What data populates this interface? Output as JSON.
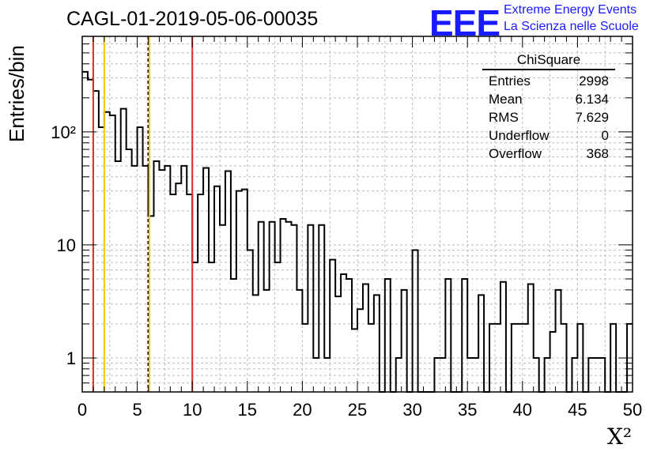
{
  "title": "CAGL-01-2019-05-06-00035",
  "logo": {
    "mark": "EEE",
    "line1": "Extreme Energy Events",
    "line2": "La Scienza nelle Scuole",
    "color": "#1a1aff"
  },
  "stats": {
    "title": "ChiSquare",
    "rows": [
      {
        "label": "Entries",
        "value": "2998"
      },
      {
        "label": "Mean",
        "value": "6.134"
      },
      {
        "label": "RMS",
        "value": "7.629"
      },
      {
        "label": "Underflow",
        "value": "0"
      },
      {
        "label": "Overflow",
        "value": "368"
      }
    ]
  },
  "ylabel": "Entries/bin",
  "xlabel": "X²",
  "chart_data": {
    "type": "histogram",
    "log_y": true,
    "xlim": [
      0,
      50
    ],
    "ylim": [
      0.5,
      700
    ],
    "bin_width": 0.5,
    "x_ticks": [
      "0",
      "5",
      "10",
      "15",
      "20",
      "25",
      "30",
      "35",
      "40",
      "45",
      "50"
    ],
    "y_ticks": [
      {
        "value": 1,
        "label": "1"
      },
      {
        "value": 10,
        "label": "10"
      },
      {
        "value": 100,
        "label": "10²"
      }
    ],
    "grid": true,
    "values": [
      340,
      290,
      230,
      110,
      150,
      140,
      55,
      160,
      70,
      50,
      110,
      50,
      18,
      55,
      46,
      50,
      28,
      35,
      50,
      28,
      7,
      28,
      48,
      7,
      33,
      15,
      45,
      5,
      30,
      31,
      9,
      3.6,
      16,
      4,
      16,
      7,
      17,
      16,
      15,
      4,
      2,
      15,
      1,
      15,
      1,
      7.4,
      3.5,
      5.5,
      5,
      1.8,
      2.7,
      4.5,
      2,
      3.6,
      0,
      5,
      0,
      1,
      4,
      0,
      9,
      0,
      0,
      0,
      1,
      1,
      5,
      0,
      0,
      5,
      1,
      1,
      3.6,
      0,
      2,
      2,
      4.7,
      0,
      2,
      2,
      2,
      4.5,
      1,
      0,
      1,
      1.7,
      4,
      2,
      0,
      1,
      2,
      0,
      1,
      1,
      1,
      0,
      2,
      0,
      0,
      2
    ],
    "lines": [
      {
        "x": 1,
        "color": "#e8291f",
        "style": "solid"
      },
      {
        "x": 2,
        "color": "#f5c400",
        "style": "solid"
      },
      {
        "x": 6,
        "color": "#000000",
        "style": "dashed"
      },
      {
        "x": 6.1,
        "color": "#f5c400",
        "style": "solid"
      },
      {
        "x": 10,
        "color": "#e8291f",
        "style": "solid"
      }
    ],
    "colors": {
      "red": "#e8291f",
      "yellow": "#f5c400",
      "line": "#000000"
    }
  }
}
